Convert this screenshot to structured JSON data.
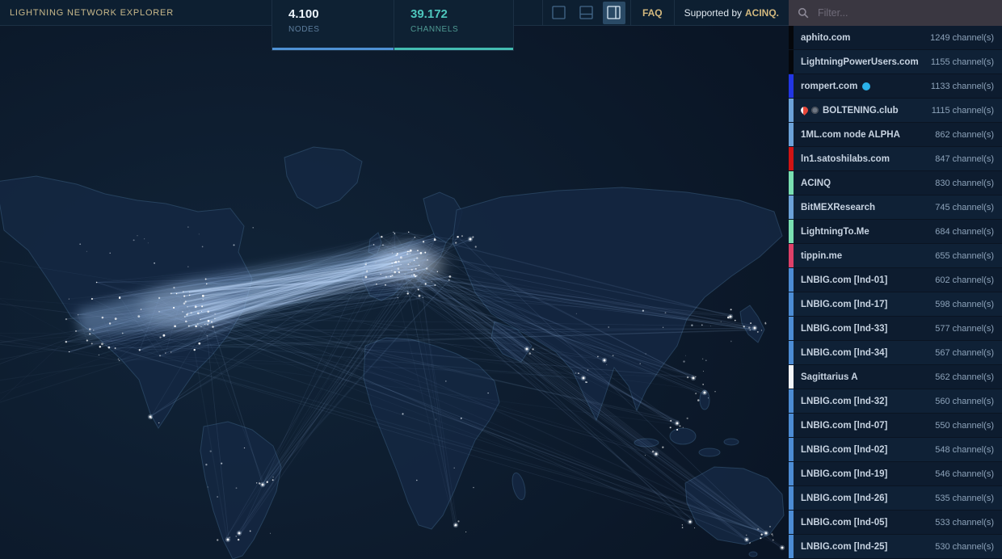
{
  "header": {
    "title": "LIGHTNING NETWORK EXPLORER",
    "stats": [
      {
        "value": "4.100",
        "label": "NODES",
        "accent": "#4e92d4"
      },
      {
        "value": "39.172",
        "label": "CHANNELS",
        "accent": "#43bcb1"
      }
    ],
    "view_modes": [
      "single-pane",
      "split-horizontal",
      "split-vertical"
    ],
    "active_view_mode": "split-vertical",
    "faq_label": "FAQ",
    "supported_by": {
      "prefix": "Supported by",
      "brand": "ACINQ."
    }
  },
  "search": {
    "placeholder": "Filter..."
  },
  "sidebar": {
    "nodes": [
      {
        "name": "aphito.com",
        "channels": "1249 channel(s)",
        "bar": "#05070b"
      },
      {
        "name": "LightningPowerUsers.com",
        "channels": "1155 channel(s)",
        "bar": "#05070b"
      },
      {
        "name": "rompert.com",
        "channels": "1133 channel(s)",
        "bar": "#2236e4",
        "icons_after": [
          "blue-circle-icon"
        ]
      },
      {
        "name": "BOLTENING.club",
        "channels": "1115 channel(s)",
        "bar": "#6ca2d8",
        "icons_before": [
          "rocket-icon",
          "gear-icon"
        ]
      },
      {
        "name": "1ML.com node ALPHA",
        "channels": "862 channel(s)",
        "bar": "#6ca2d8"
      },
      {
        "name": "ln1.satoshilabs.com",
        "channels": "847 channel(s)",
        "bar": "#d01414"
      },
      {
        "name": "ACINQ",
        "channels": "830 channel(s)",
        "bar": "#79dfb1"
      },
      {
        "name": "BitMEXResearch",
        "channels": "745 channel(s)",
        "bar": "#6ca2d8"
      },
      {
        "name": "LightningTo.Me",
        "channels": "684 channel(s)",
        "bar": "#79dfb1"
      },
      {
        "name": "tippin.me",
        "channels": "655 channel(s)",
        "bar": "#dd4068"
      },
      {
        "name": "LNBIG.com [lnd-01]",
        "channels": "602 channel(s)",
        "bar": "#4c8cd4"
      },
      {
        "name": "LNBIG.com [lnd-17]",
        "channels": "598 channel(s)",
        "bar": "#4c8cd4"
      },
      {
        "name": "LNBIG.com [lnd-33]",
        "channels": "577 channel(s)",
        "bar": "#4c8cd4"
      },
      {
        "name": "LNBIG.com [lnd-34]",
        "channels": "567 channel(s)",
        "bar": "#4c8cd4"
      },
      {
        "name": "Sagittarius A",
        "channels": "562 channel(s)",
        "bar": "#f2f5f8"
      },
      {
        "name": "LNBIG.com [lnd-32]",
        "channels": "560 channel(s)",
        "bar": "#4c8cd4"
      },
      {
        "name": "LNBIG.com [lnd-07]",
        "channels": "550 channel(s)",
        "bar": "#4c8cd4"
      },
      {
        "name": "LNBIG.com [lnd-02]",
        "channels": "548 channel(s)",
        "bar": "#4c8cd4"
      },
      {
        "name": "LNBIG.com [lnd-19]",
        "channels": "546 channel(s)",
        "bar": "#4c8cd4"
      },
      {
        "name": "LNBIG.com [lnd-26]",
        "channels": "535 channel(s)",
        "bar": "#4c8cd4"
      },
      {
        "name": "LNBIG.com [lnd-05]",
        "channels": "533 channel(s)",
        "bar": "#4c8cd4"
      },
      {
        "name": "LNBIG.com [lnd-25]",
        "channels": "530 channel(s)",
        "bar": "#4c8cd4"
      }
    ]
  }
}
